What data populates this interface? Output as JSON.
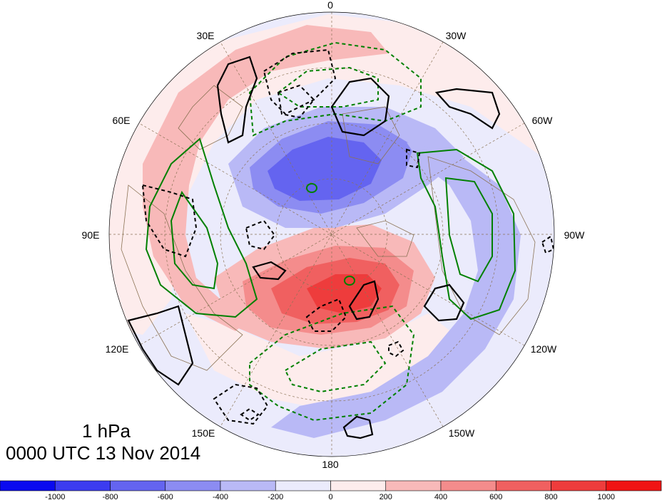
{
  "map": {
    "level_label": "1 hPa",
    "time_label": "0000 UTC 13 Nov 2014",
    "longitude_labels": [
      "0",
      "30W",
      "60W",
      "90W",
      "120W",
      "150W",
      "180",
      "150E",
      "120E",
      "90E",
      "60E",
      "30E"
    ],
    "colorbar": {
      "tick_labels": [
        "-1000",
        "-800",
        "-600",
        "-400",
        "-200",
        "0",
        "200",
        "400",
        "600",
        "800",
        "1000"
      ],
      "colors": [
        "#0a0af0",
        "#3c3cf0",
        "#6464f0",
        "#8c8cf2",
        "#b9b9f6",
        "#ebebfc",
        "#fdecec",
        "#f8b9b9",
        "#f48c8c",
        "#f06060",
        "#ee3c3c",
        "#f01414"
      ]
    },
    "shading_colors": {
      "neg_light": "#ebebfc",
      "neg_200": "#b9b9f6",
      "neg_400": "#8c8cf2",
      "neg_600": "#6464f0",
      "pos_light": "#fdecec",
      "pos_200": "#f8b9b9",
      "pos_400": "#f48c8c",
      "pos_600": "#f06060",
      "pos_800": "#ee3c3c"
    },
    "contour_colors": {
      "primary": "#000000",
      "secondary": "#008000",
      "coastline": "#8b7355"
    }
  }
}
